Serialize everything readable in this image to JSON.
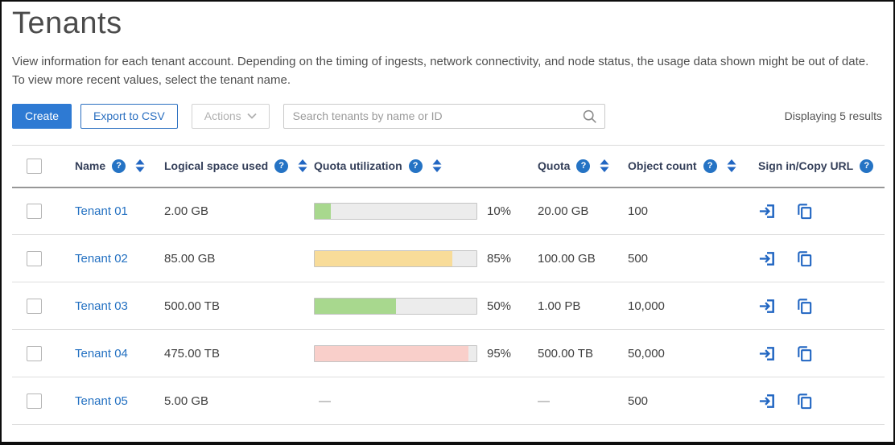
{
  "page": {
    "title": "Tenants",
    "description_line1": "View information for each tenant account. Depending on the timing of ingests, network connectivity, and node status, the usage data shown might be out of date.",
    "description_line2": "To view more recent values, select the tenant name.",
    "results_summary": "Displaying 5 results"
  },
  "toolbar": {
    "create_label": "Create",
    "export_label": "Export to CSV",
    "actions_label": "Actions",
    "search_placeholder": "Search tenants by name or ID"
  },
  "colors": {
    "accent_blue": "#2573c4",
    "link_blue": "#2471c2",
    "ok": "#a8d88e",
    "warning": "#f8dc99",
    "critical": "#f9cfca",
    "track_gray": "#ececec"
  },
  "table": {
    "columns": [
      {
        "label": "Name"
      },
      {
        "label": "Logical space used"
      },
      {
        "label": "Quota utilization"
      },
      {
        "label": "Quota"
      },
      {
        "label": "Object count"
      },
      {
        "label": "Sign in/Copy URL"
      }
    ],
    "rows": [
      {
        "name": "Tenant 01",
        "logical_space": "2.00 GB",
        "utilization_percent": 10,
        "utilization_label": "10%",
        "utilization_level": "ok",
        "quota": "20.00 GB",
        "object_count": "100"
      },
      {
        "name": "Tenant 02",
        "logical_space": "85.00 GB",
        "utilization_percent": 85,
        "utilization_label": "85%",
        "utilization_level": "warning",
        "quota": "100.00 GB",
        "object_count": "500"
      },
      {
        "name": "Tenant 03",
        "logical_space": "500.00 TB",
        "utilization_percent": 50,
        "utilization_label": "50%",
        "utilization_level": "ok",
        "quota": "1.00 PB",
        "object_count": "10,000"
      },
      {
        "name": "Tenant 04",
        "logical_space": "475.00 TB",
        "utilization_percent": 95,
        "utilization_label": "95%",
        "utilization_level": "critical",
        "quota": "500.00 TB",
        "object_count": "50,000"
      },
      {
        "name": "Tenant 05",
        "logical_space": "5.00 GB",
        "utilization_percent": null,
        "utilization_label": "—",
        "utilization_level": "none",
        "quota": "—",
        "object_count": "500"
      }
    ]
  }
}
